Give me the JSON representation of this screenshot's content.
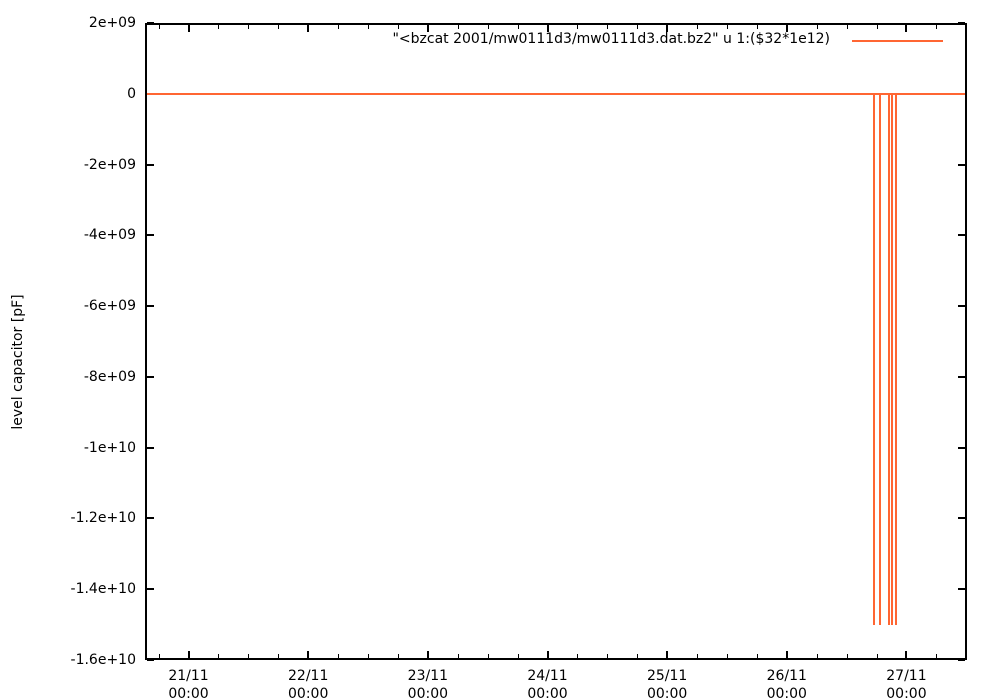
{
  "chart_data": {
    "type": "line",
    "title": "",
    "xlabel": "",
    "ylabel": "level capacitor [pF]",
    "grid": false,
    "background": "#ffffff",
    "border_color": "#000000",
    "legend": {
      "position": "top-right-inside",
      "entry": "\"<bzcat 2001/mw0111d3/mw0111d3.dat.bz2\" u 1:($32*1e12)"
    },
    "y_axis": {
      "range": [
        -16000000000,
        2000000000
      ],
      "ticks": [
        {
          "label": "2e+09",
          "value": 2000000000
        },
        {
          "label": "0",
          "value": 0
        },
        {
          "label": "-2e+09",
          "value": -2000000000
        },
        {
          "label": "-4e+09",
          "value": -4000000000
        },
        {
          "label": "-6e+09",
          "value": -6000000000
        },
        {
          "label": "-8e+09",
          "value": -8000000000
        },
        {
          "label": "-1e+10",
          "value": -10000000000
        },
        {
          "label": "-1.2e+10",
          "value": -12000000000
        },
        {
          "label": "-1.4e+10",
          "value": -14000000000
        },
        {
          "label": "-1.6e+10",
          "value": -16000000000
        }
      ]
    },
    "x_axis": {
      "range_days": [
        -0.364,
        6.506
      ],
      "major_tick_days": [
        0,
        1,
        2,
        3,
        4,
        5,
        6
      ],
      "minor_tick_step_days": 0.25,
      "tick_labels": [
        {
          "date": "21/11",
          "time": "00:00"
        },
        {
          "date": "22/11",
          "time": "00:00"
        },
        {
          "date": "23/11",
          "time": "00:00"
        },
        {
          "date": "24/11",
          "time": "00:00"
        },
        {
          "date": "25/11",
          "time": "00:00"
        },
        {
          "date": "26/11",
          "time": "00:00"
        },
        {
          "date": "27/11",
          "time": "00:00"
        }
      ]
    },
    "series": [
      {
        "name": "\"<bzcat 2001/mw0111d3/mw0111d3.dat.bz2\" u 1:($32*1e12)",
        "color": "#ff6633",
        "baseline_value": 0,
        "spike_value": -15000000000,
        "spike_x_days": [
          5.728,
          5.778,
          5.854,
          5.879,
          5.912
        ]
      }
    ]
  }
}
